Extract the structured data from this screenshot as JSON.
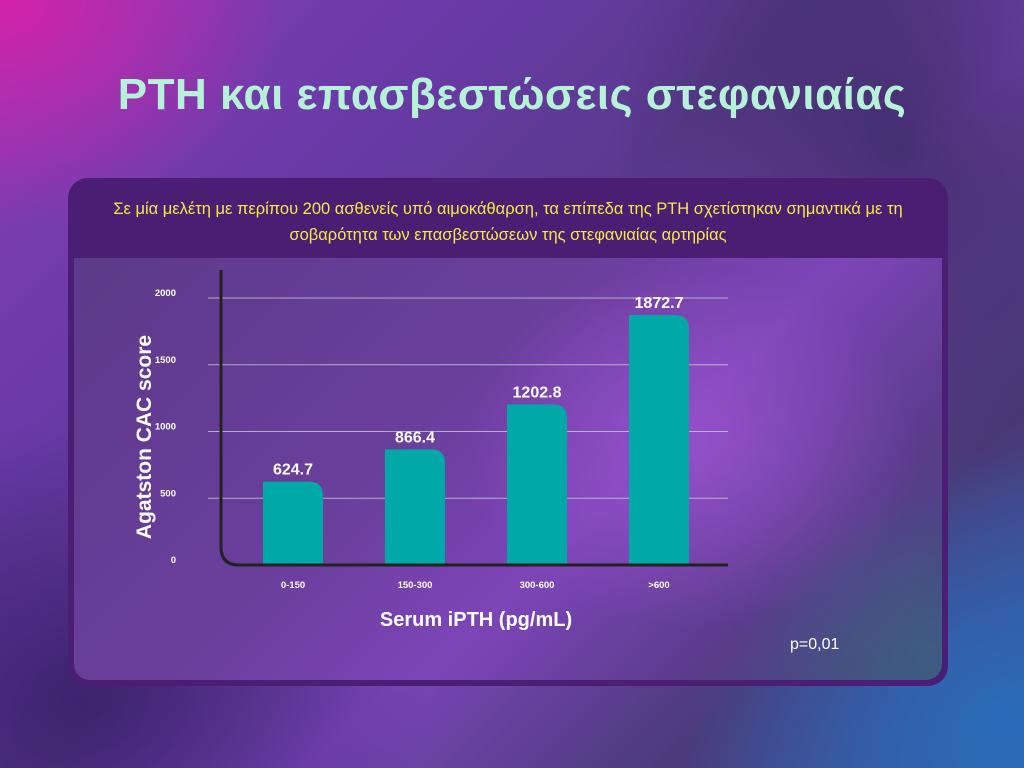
{
  "slide": {
    "title": "PTH και επασβεστώσεις στεφανιαίας",
    "intro": "Σε μία μελέτη με περίπου 200 ασθενείς υπό αιμοκάθαρση, τα επίπεδα της PTH σχετίστηκαν σημαντικά με τη σοβαρότητα των επασβεστώσεων  της στεφανιαίας αρτηρίας",
    "p_value": "p=0,01"
  },
  "colors": {
    "title": "#b6f2d8",
    "intro_text": "#f5e94a",
    "panel": "#4a1f73",
    "bar": "#00a8a8",
    "gridline": "#c8c8d8",
    "axis": "#222222"
  },
  "chart_data": {
    "type": "bar",
    "categories": [
      "0-150",
      "150-300",
      "300-600",
      ">600"
    ],
    "values": [
      624.7,
      866.4,
      1202.8,
      1872.7
    ],
    "value_labels": [
      "624.7",
      "866.4",
      "1202.8",
      "1872.7"
    ],
    "xlabel": "Serum iPTH (pg/mL)",
    "ylabel": "Agatston CAC score",
    "ylim": [
      0,
      2000
    ],
    "yticks": [
      "0",
      "500",
      "1000",
      "1500",
      "2000"
    ],
    "grid": true,
    "legend": "none"
  }
}
